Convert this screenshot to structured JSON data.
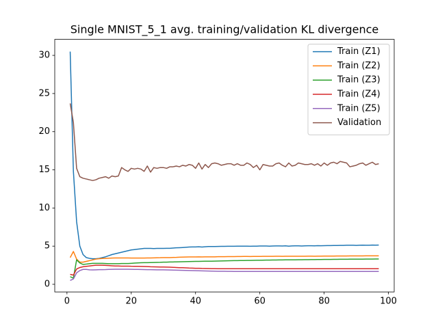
{
  "chart_data": {
    "type": "line",
    "title": "Single MNIST_5_1 avg. training/validation KL divergence",
    "x": [
      1,
      2,
      3,
      4,
      5,
      6,
      7,
      8,
      9,
      10,
      11,
      12,
      13,
      14,
      15,
      16,
      17,
      18,
      19,
      20,
      21,
      22,
      23,
      24,
      25,
      26,
      27,
      28,
      29,
      30,
      31,
      32,
      33,
      34,
      35,
      36,
      37,
      38,
      39,
      40,
      41,
      42,
      43,
      44,
      45,
      46,
      47,
      48,
      49,
      50,
      51,
      52,
      53,
      54,
      55,
      56,
      57,
      58,
      59,
      60,
      61,
      62,
      63,
      64,
      65,
      66,
      67,
      68,
      69,
      70,
      71,
      72,
      73,
      74,
      75,
      76,
      77,
      78,
      79,
      80,
      81,
      82,
      83,
      84,
      85,
      86,
      87,
      88,
      89,
      90,
      91,
      92,
      93,
      94,
      95,
      96,
      97
    ],
    "series": [
      {
        "name": "Train (Z1)",
        "color": "#1f77b4",
        "values": [
          30.5,
          14.8,
          8.2,
          5.0,
          3.9,
          3.5,
          3.4,
          3.35,
          3.35,
          3.4,
          3.5,
          3.6,
          3.75,
          3.9,
          4.0,
          4.1,
          4.2,
          4.3,
          4.4,
          4.5,
          4.55,
          4.6,
          4.65,
          4.7,
          4.7,
          4.7,
          4.68,
          4.7,
          4.7,
          4.7,
          4.72,
          4.72,
          4.75,
          4.78,
          4.8,
          4.82,
          4.85,
          4.88,
          4.9,
          4.9,
          4.92,
          4.88,
          4.92,
          4.95,
          4.95,
          4.95,
          4.96,
          4.97,
          4.97,
          4.98,
          4.98,
          4.98,
          4.99,
          4.99,
          5.0,
          5.0,
          4.98,
          5.0,
          5.0,
          5.02,
          5.02,
          5.02,
          5.0,
          5.02,
          5.03,
          5.03,
          5.02,
          5.04,
          5.0,
          5.03,
          5.04,
          5.04,
          5.02,
          5.04,
          5.05,
          5.05,
          5.04,
          5.06,
          5.05,
          5.06,
          5.07,
          5.07,
          5.08,
          5.08,
          5.1,
          5.1,
          5.12,
          5.12,
          5.12,
          5.1,
          5.12,
          5.13,
          5.12,
          5.12,
          5.14,
          5.13,
          5.14
        ]
      },
      {
        "name": "Train (Z2)",
        "color": "#ff7f0e",
        "values": [
          3.5,
          4.3,
          3.3,
          2.9,
          2.9,
          3.0,
          3.1,
          3.2,
          3.3,
          3.35,
          3.38,
          3.4,
          3.42,
          3.44,
          3.45,
          3.45,
          3.45,
          3.45,
          3.45,
          3.44,
          3.44,
          3.44,
          3.44,
          3.44,
          3.45,
          3.45,
          3.46,
          3.47,
          3.48,
          3.5,
          3.5,
          3.5,
          3.52,
          3.53,
          3.55,
          3.56,
          3.57,
          3.58,
          3.58,
          3.58,
          3.6,
          3.58,
          3.6,
          3.6,
          3.6,
          3.6,
          3.62,
          3.62,
          3.62,
          3.63,
          3.63,
          3.63,
          3.64,
          3.64,
          3.65,
          3.65,
          3.64,
          3.65,
          3.65,
          3.65,
          3.66,
          3.66,
          3.66,
          3.66,
          3.67,
          3.67,
          3.66,
          3.67,
          3.67,
          3.68,
          3.68,
          3.68,
          3.68,
          3.68,
          3.69,
          3.69,
          3.68,
          3.69,
          3.69,
          3.7,
          3.7,
          3.7,
          3.7,
          3.71,
          3.71,
          3.71,
          3.71,
          3.72,
          3.72,
          3.72,
          3.72,
          3.72,
          3.73,
          3.73,
          3.73,
          3.73,
          3.73
        ]
      },
      {
        "name": "Train (Z3)",
        "color": "#2ca02c",
        "values": [
          1.0,
          0.8,
          3.2,
          2.8,
          2.6,
          2.65,
          2.7,
          2.75,
          2.75,
          2.75,
          2.75,
          2.72,
          2.7,
          2.7,
          2.7,
          2.7,
          2.72,
          2.72,
          2.72,
          2.75,
          2.78,
          2.8,
          2.82,
          2.83,
          2.84,
          2.85,
          2.86,
          2.87,
          2.88,
          2.9,
          2.9,
          2.92,
          2.93,
          2.94,
          2.95,
          2.96,
          2.97,
          2.98,
          2.99,
          3.0,
          3.0,
          3.01,
          3.02,
          3.03,
          3.03,
          3.04,
          3.05,
          3.06,
          3.07,
          3.08,
          3.09,
          3.1,
          3.1,
          3.11,
          3.12,
          3.13,
          3.13,
          3.14,
          3.15,
          3.15,
          3.16,
          3.17,
          3.17,
          3.18,
          3.18,
          3.19,
          3.19,
          3.2,
          3.2,
          3.21,
          3.21,
          3.22,
          3.22,
          3.23,
          3.23,
          3.24,
          3.24,
          3.25,
          3.25,
          3.26,
          3.26,
          3.26,
          3.27,
          3.27,
          3.28,
          3.28,
          3.28,
          3.29,
          3.29,
          3.3,
          3.3,
          3.3,
          3.31,
          3.31,
          3.31,
          3.32,
          3.32
        ]
      },
      {
        "name": "Train (Z4)",
        "color": "#d62728",
        "values": [
          1.3,
          1.2,
          2.0,
          2.2,
          2.3,
          2.35,
          2.4,
          2.45,
          2.5,
          2.5,
          2.5,
          2.48,
          2.45,
          2.42,
          2.4,
          2.4,
          2.38,
          2.38,
          2.38,
          2.36,
          2.35,
          2.35,
          2.34,
          2.33,
          2.32,
          2.3,
          2.29,
          2.28,
          2.27,
          2.26,
          2.25,
          2.24,
          2.22,
          2.2,
          2.18,
          2.17,
          2.15,
          2.13,
          2.12,
          2.1,
          2.1,
          2.08,
          2.07,
          2.06,
          2.05,
          2.05,
          2.04,
          2.04,
          2.04,
          2.04,
          2.04,
          2.04,
          2.04,
          2.04,
          2.04,
          2.04,
          2.04,
          2.04,
          2.04,
          2.04,
          2.04,
          2.04,
          2.04,
          2.04,
          2.04,
          2.04,
          2.04,
          2.04,
          2.04,
          2.04,
          2.04,
          2.04,
          2.04,
          2.04,
          2.04,
          2.04,
          2.04,
          2.04,
          2.04,
          2.04,
          2.04,
          2.04,
          2.04,
          2.04,
          2.04,
          2.04,
          2.04,
          2.04,
          2.04,
          2.04,
          2.04,
          2.04,
          2.04,
          2.04,
          2.04,
          2.04,
          2.04
        ]
      },
      {
        "name": "Train (Z5)",
        "color": "#9467bd",
        "values": [
          0.5,
          0.7,
          1.5,
          1.8,
          1.95,
          1.95,
          1.9,
          1.88,
          1.9,
          1.92,
          1.92,
          1.93,
          1.95,
          1.96,
          1.97,
          1.97,
          1.97,
          1.97,
          1.97,
          1.96,
          1.95,
          1.95,
          1.94,
          1.93,
          1.92,
          1.92,
          1.91,
          1.9,
          1.9,
          1.89,
          1.88,
          1.87,
          1.86,
          1.85,
          1.84,
          1.83,
          1.82,
          1.8,
          1.79,
          1.78,
          1.77,
          1.76,
          1.75,
          1.74,
          1.73,
          1.72,
          1.71,
          1.7,
          1.7,
          1.69,
          1.69,
          1.68,
          1.68,
          1.68,
          1.68,
          1.68,
          1.68,
          1.68,
          1.68,
          1.68,
          1.68,
          1.68,
          1.68,
          1.68,
          1.68,
          1.68,
          1.68,
          1.68,
          1.68,
          1.68,
          1.68,
          1.68,
          1.68,
          1.68,
          1.68,
          1.68,
          1.68,
          1.68,
          1.68,
          1.68,
          1.68,
          1.68,
          1.68,
          1.68,
          1.68,
          1.68,
          1.68,
          1.68,
          1.68,
          1.68,
          1.68,
          1.68,
          1.68,
          1.68,
          1.68,
          1.68,
          1.68
        ]
      },
      {
        "name": "Validation",
        "color": "#8c564b",
        "values": [
          23.7,
          21.2,
          15.2,
          14.1,
          13.9,
          13.8,
          13.7,
          13.6,
          13.7,
          13.9,
          14.0,
          14.1,
          13.9,
          14.2,
          14.1,
          14.2,
          15.3,
          15.0,
          14.8,
          15.2,
          15.1,
          15.2,
          15.1,
          14.8,
          15.5,
          14.7,
          15.3,
          15.2,
          15.3,
          15.3,
          15.2,
          15.4,
          15.4,
          15.5,
          15.4,
          15.6,
          15.5,
          15.7,
          15.6,
          15.2,
          15.9,
          15.1,
          15.7,
          15.3,
          15.8,
          15.9,
          15.8,
          15.6,
          15.7,
          15.8,
          15.8,
          15.6,
          15.8,
          15.6,
          15.6,
          15.9,
          15.7,
          15.3,
          15.6,
          15.0,
          15.7,
          15.6,
          15.5,
          15.5,
          15.8,
          15.9,
          15.6,
          15.4,
          15.9,
          15.5,
          15.6,
          15.9,
          15.8,
          15.7,
          15.7,
          15.8,
          15.6,
          15.8,
          15.5,
          15.9,
          15.6,
          15.9,
          16.0,
          15.8,
          16.1,
          16.0,
          15.9,
          15.4,
          15.5,
          15.6,
          15.8,
          15.9,
          15.6,
          15.8,
          16.0,
          15.7,
          15.8
        ]
      }
    ],
    "xlim": [
      -3.8,
      101.8
    ],
    "xticks": [
      0,
      20,
      40,
      60,
      80,
      100
    ],
    "ylim": [
      -1.0,
      32.1
    ],
    "yticks": [
      0,
      5,
      10,
      15,
      20,
      25,
      30
    ],
    "legend": "upper right"
  }
}
